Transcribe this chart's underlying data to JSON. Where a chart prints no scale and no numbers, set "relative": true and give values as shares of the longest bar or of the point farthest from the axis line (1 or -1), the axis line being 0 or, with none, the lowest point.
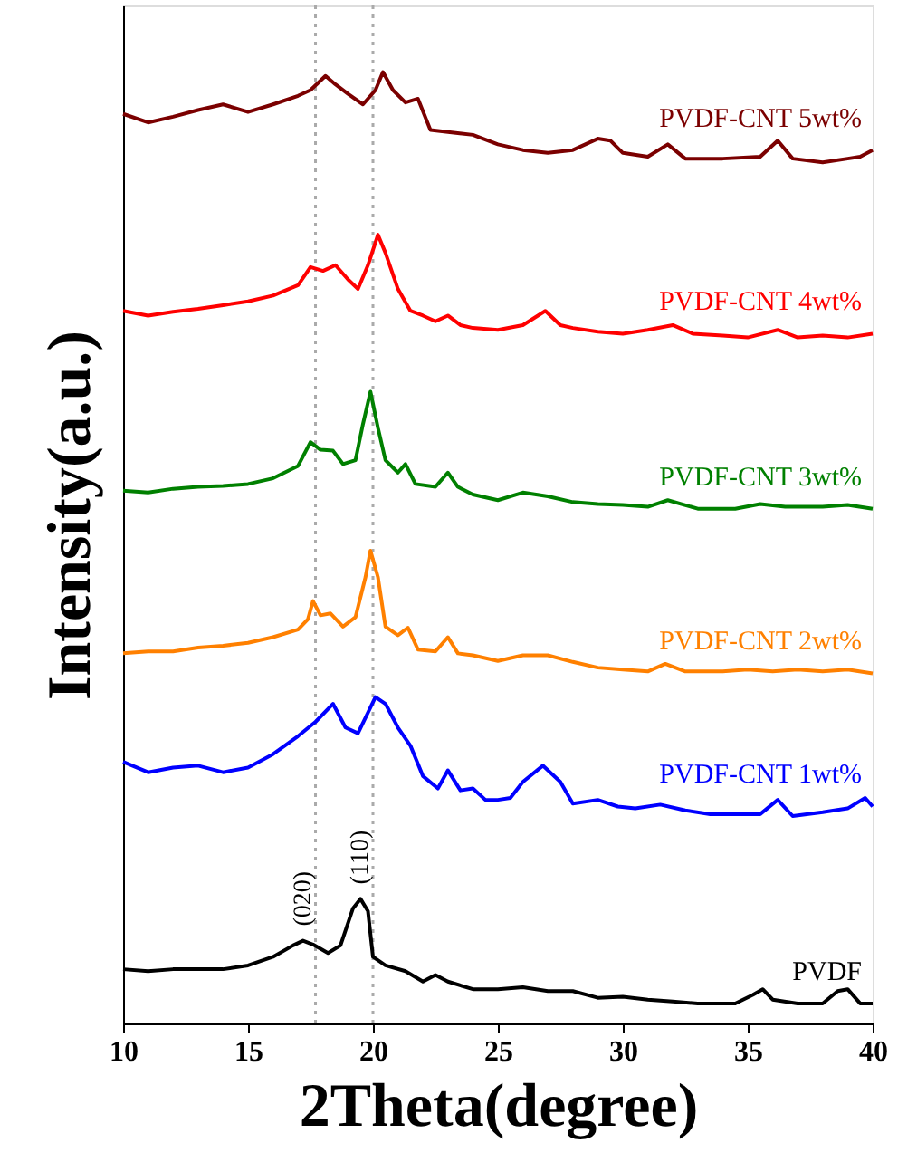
{
  "chart_data": {
    "type": "line",
    "xlabel": "2Theta(degree)",
    "ylabel": "Intensity(a.u.)",
    "relative": true,
    "tick_labels": "x",
    "grid": false,
    "line_style": "solid",
    "marker": "none",
    "xlim": [
      10,
      40
    ],
    "xticks": [
      10,
      15,
      20,
      25,
      30,
      35,
      40
    ],
    "ref_lines": [
      {
        "axis": "x",
        "value": 17.7,
        "color": "#aaaaaa",
        "line_style": "dotted"
      },
      {
        "axis": "x",
        "value": 20.0,
        "color": "#aaaaaa",
        "line_style": "dotted"
      }
    ],
    "annotations": [
      {
        "text": "(020)",
        "x": 17.2,
        "y": 0.087
      },
      {
        "text": "(110)",
        "x": 19.5,
        "y": 0.131
      }
    ],
    "series": [
      {
        "name": "PVDF",
        "color": "#000000",
        "x": [
          10,
          11,
          12,
          13,
          14,
          15,
          16,
          16.8,
          17.2,
          17.6,
          18.2,
          18.7,
          19.2,
          19.5,
          19.8,
          20.0,
          20.5,
          21.3,
          22,
          22.5,
          23,
          24,
          25,
          26,
          27,
          28,
          29,
          30,
          31,
          32,
          33,
          34.5,
          35.2,
          35.6,
          36,
          37,
          38,
          38.6,
          39,
          39.5,
          40
        ],
        "values": [
          0.057,
          0.055,
          0.057,
          0.057,
          0.057,
          0.061,
          0.07,
          0.082,
          0.087,
          0.083,
          0.074,
          0.082,
          0.121,
          0.131,
          0.118,
          0.07,
          0.061,
          0.055,
          0.044,
          0.051,
          0.044,
          0.036,
          0.036,
          0.038,
          0.034,
          0.034,
          0.027,
          0.028,
          0.025,
          0.023,
          0.021,
          0.021,
          0.03,
          0.036,
          0.025,
          0.021,
          0.021,
          0.034,
          0.036,
          0.021,
          0.021
        ]
      },
      {
        "name": "PVDF-CNT 1wt%",
        "color": "#0000ff",
        "x": [
          10,
          11,
          12,
          13,
          14,
          15,
          16,
          17,
          17.7,
          18.4,
          18.9,
          19.4,
          20.1,
          20.5,
          21,
          21.5,
          22,
          22.6,
          23.0,
          23.5,
          24,
          24.5,
          25,
          25.5,
          26,
          26.8,
          27.5,
          28,
          29,
          29.8,
          30.5,
          31.5,
          32.5,
          33.5,
          34.5,
          35.5,
          36.2,
          36.8,
          38,
          39,
          39.7,
          40
        ],
        "values": [
          0.275,
          0.264,
          0.269,
          0.271,
          0.264,
          0.269,
          0.283,
          0.302,
          0.317,
          0.336,
          0.311,
          0.305,
          0.343,
          0.336,
          0.311,
          0.292,
          0.26,
          0.247,
          0.266,
          0.245,
          0.247,
          0.235,
          0.235,
          0.237,
          0.254,
          0.271,
          0.254,
          0.231,
          0.235,
          0.228,
          0.226,
          0.23,
          0.224,
          0.22,
          0.22,
          0.22,
          0.235,
          0.218,
          0.222,
          0.226,
          0.237,
          0.228
        ]
      },
      {
        "name": "PVDF-CNT 2wt%",
        "color": "#ff8000",
        "x": [
          10,
          11,
          12,
          13,
          14,
          15,
          16,
          17,
          17.4,
          17.6,
          17.9,
          18.3,
          18.8,
          19.3,
          19.7,
          19.9,
          20.2,
          20.5,
          21,
          21.4,
          21.8,
          22.5,
          23,
          23.4,
          24,
          25,
          26,
          27,
          28,
          29,
          30,
          31,
          31.7,
          32.5,
          34,
          35,
          36,
          37,
          38,
          39,
          40
        ],
        "values": [
          0.389,
          0.391,
          0.391,
          0.395,
          0.397,
          0.4,
          0.406,
          0.414,
          0.425,
          0.444,
          0.429,
          0.431,
          0.417,
          0.427,
          0.469,
          0.497,
          0.469,
          0.417,
          0.408,
          0.416,
          0.393,
          0.391,
          0.406,
          0.389,
          0.387,
          0.381,
          0.387,
          0.387,
          0.38,
          0.374,
          0.372,
          0.37,
          0.378,
          0.37,
          0.37,
          0.372,
          0.37,
          0.372,
          0.37,
          0.372,
          0.368
        ]
      },
      {
        "name": "PVDF-CNT 3wt%",
        "color": "#008000",
        "x": [
          10,
          11,
          12,
          13,
          14,
          15,
          16,
          17,
          17.5,
          17.9,
          18.4,
          18.8,
          19.3,
          19.6,
          19.9,
          20.2,
          20.5,
          21,
          21.3,
          21.7,
          22.5,
          23,
          23.4,
          24,
          25,
          26,
          27,
          28,
          29,
          30,
          31,
          31.8,
          33,
          34.5,
          35.5,
          36.5,
          38,
          39,
          40
        ],
        "values": [
          0.56,
          0.558,
          0.562,
          0.564,
          0.565,
          0.567,
          0.573,
          0.586,
          0.611,
          0.603,
          0.602,
          0.588,
          0.592,
          0.63,
          0.664,
          0.626,
          0.592,
          0.579,
          0.588,
          0.567,
          0.564,
          0.579,
          0.564,
          0.556,
          0.55,
          0.558,
          0.554,
          0.548,
          0.546,
          0.545,
          0.543,
          0.55,
          0.541,
          0.541,
          0.546,
          0.543,
          0.543,
          0.545,
          0.541
        ]
      },
      {
        "name": "PVDF-CNT 4wt%",
        "color": "#ff0000",
        "x": [
          10,
          11,
          12,
          13,
          14,
          15,
          16,
          17,
          17.5,
          18,
          18.5,
          19,
          19.4,
          19.8,
          20.2,
          20.5,
          21,
          21.5,
          22,
          22.5,
          23,
          23.5,
          24,
          25,
          26,
          26.9,
          27.5,
          28,
          29,
          30,
          31,
          32,
          32.8,
          34,
          35,
          36.2,
          37,
          38,
          39,
          40
        ],
        "values": [
          0.749,
          0.744,
          0.748,
          0.751,
          0.755,
          0.759,
          0.765,
          0.776,
          0.795,
          0.791,
          0.797,
          0.782,
          0.772,
          0.797,
          0.829,
          0.81,
          0.772,
          0.749,
          0.744,
          0.738,
          0.744,
          0.734,
          0.731,
          0.729,
          0.734,
          0.749,
          0.734,
          0.731,
          0.727,
          0.725,
          0.729,
          0.734,
          0.725,
          0.723,
          0.721,
          0.729,
          0.721,
          0.723,
          0.721,
          0.725
        ]
      },
      {
        "name": "PVDF-CNT 5wt%",
        "color": "#7b0000",
        "x": [
          10,
          11,
          12,
          13,
          14,
          15,
          16,
          17,
          17.5,
          18.1,
          18.5,
          19,
          19.6,
          20.1,
          20.4,
          20.8,
          21.3,
          21.8,
          22.3,
          23,
          24,
          25,
          26,
          27,
          28,
          29,
          29.5,
          30,
          31,
          31.8,
          32.5,
          34,
          35.5,
          36.2,
          36.8,
          38,
          39,
          39.5,
          40
        ],
        "values": [
          0.956,
          0.947,
          0.953,
          0.96,
          0.966,
          0.958,
          0.966,
          0.975,
          0.981,
          0.996,
          0.987,
          0.977,
          0.966,
          0.981,
          1.0,
          0.981,
          0.968,
          0.972,
          0.939,
          0.937,
          0.934,
          0.924,
          0.918,
          0.915,
          0.918,
          0.93,
          0.928,
          0.915,
          0.911,
          0.924,
          0.909,
          0.909,
          0.911,
          0.928,
          0.909,
          0.905,
          0.909,
          0.911,
          0.918
        ]
      }
    ]
  }
}
